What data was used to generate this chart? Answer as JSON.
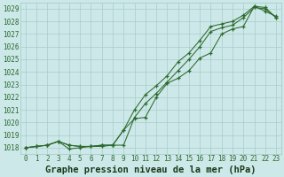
{
  "title": "Graphe pression niveau de la mer (hPa)",
  "x_labels": [
    "0",
    "1",
    "2",
    "3",
    "4",
    "5",
    "6",
    "7",
    "8",
    "9",
    "10",
    "11",
    "12",
    "13",
    "14",
    "15",
    "16",
    "17",
    "18",
    "19",
    "20",
    "21",
    "22",
    "23"
  ],
  "ylim": [
    1017.5,
    1029.5
  ],
  "xlim": [
    -0.5,
    23.5
  ],
  "yticks": [
    1018,
    1019,
    1020,
    1021,
    1022,
    1023,
    1024,
    1025,
    1026,
    1027,
    1028,
    1029
  ],
  "line_max": [
    1018.0,
    1018.1,
    1018.2,
    1018.5,
    1018.2,
    1018.1,
    1018.1,
    1018.2,
    1018.2,
    1019.4,
    1021.0,
    1022.2,
    1022.9,
    1023.7,
    1024.8,
    1025.5,
    1026.5,
    1027.6,
    1027.8,
    1028.0,
    1028.5,
    1029.2,
    1028.8,
    1028.4
  ],
  "line_mean": [
    1018.0,
    1018.1,
    1018.2,
    1018.5,
    1018.2,
    1018.1,
    1018.1,
    1018.2,
    1018.2,
    1018.2,
    1020.4,
    1021.5,
    1022.3,
    1023.2,
    1024.1,
    1025.0,
    1026.0,
    1027.2,
    1027.5,
    1027.7,
    1028.3,
    1029.1,
    1029.0,
    1028.3
  ],
  "line_min": [
    1018.0,
    1018.1,
    1018.2,
    1018.5,
    1017.9,
    1018.0,
    1018.1,
    1018.1,
    1018.2,
    1019.4,
    1020.3,
    1020.4,
    1022.0,
    1023.1,
    1023.5,
    1024.1,
    1025.1,
    1025.5,
    1027.0,
    1027.4,
    1027.6,
    1029.2,
    1029.1,
    1028.3
  ],
  "line_color": "#2d6a2d",
  "bg_color": "#cce8e8",
  "grid_color": "#aacccc",
  "title_color": "#1a3a1a",
  "title_fontsize": 7.5,
  "tick_fontsize": 5.5
}
